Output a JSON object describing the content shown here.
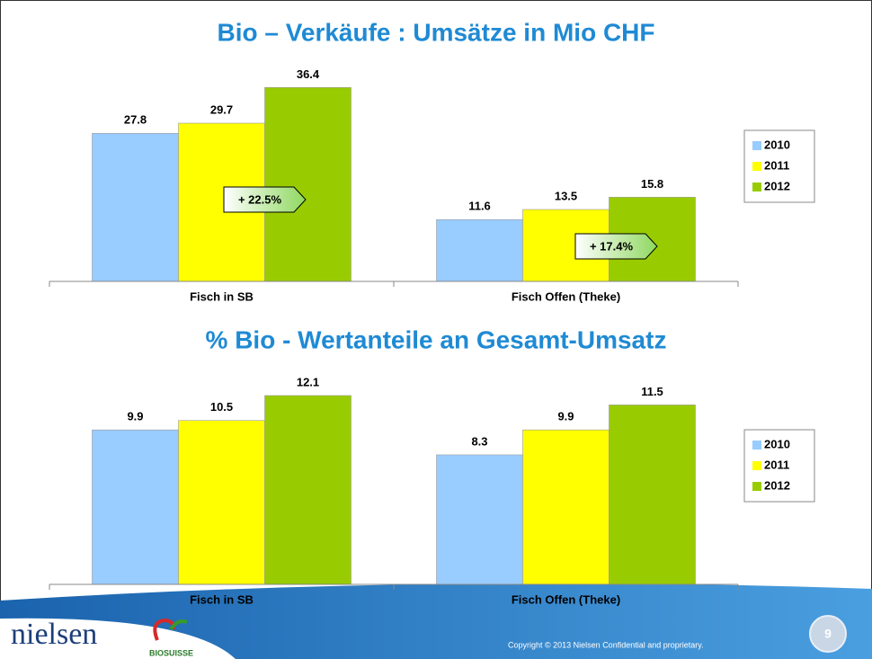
{
  "chart_data": [
    {
      "type": "bar",
      "title": "Bio – Verkäufe : Umsätze in Mio CHF",
      "categories": [
        "Fisch in SB",
        "Fisch Offen (Theke)"
      ],
      "series": [
        {
          "name": "2010",
          "color": "#99ccff",
          "values": [
            27.8,
            11.6
          ]
        },
        {
          "name": "2011",
          "color": "#ffff00",
          "values": [
            29.7,
            13.5
          ]
        },
        {
          "name": "2012",
          "color": "#99cc00",
          "values": [
            36.4,
            15.8
          ]
        }
      ],
      "ylim": [
        0,
        40
      ],
      "annotations": [
        "+ 22.5%",
        "+ 17.4%"
      ]
    },
    {
      "type": "bar",
      "title": "% Bio - Wertanteile an Gesamt-Umsatz",
      "categories": [
        "Fisch in SB",
        "Fisch Offen (Theke)"
      ],
      "series": [
        {
          "name": "2010",
          "color": "#99ccff",
          "values": [
            9.9,
            8.3
          ]
        },
        {
          "name": "2011",
          "color": "#ffff00",
          "values": [
            10.5,
            9.9
          ]
        },
        {
          "name": "2012",
          "color": "#99cc00",
          "values": [
            12.1,
            11.5
          ]
        }
      ],
      "ylim": [
        0,
        14
      ]
    }
  ],
  "footer": {
    "logo_left": "nielsen",
    "logo_right": "BIOSUISSE",
    "copyright": "Copyright © 2013 Nielsen Confidential and proprietary.",
    "page_number": "9"
  }
}
